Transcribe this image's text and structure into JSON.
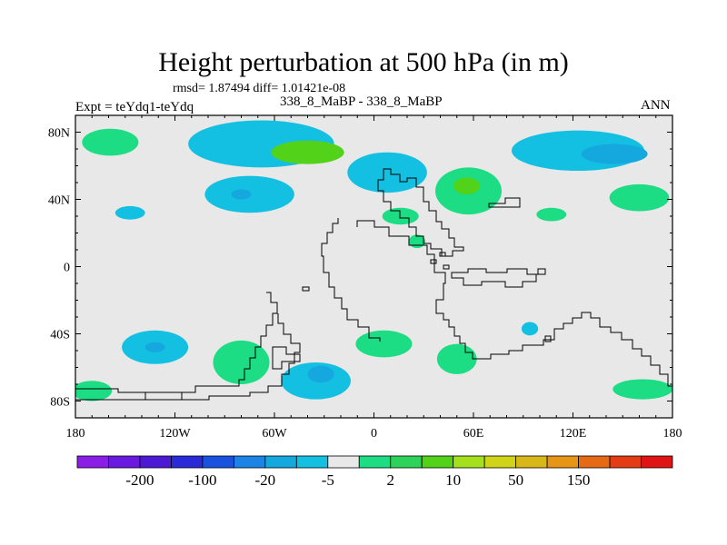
{
  "chart_data": {
    "type": "heatmap",
    "title": "Height perturbation at 500 hPa (in m)",
    "stats_text": "rmsd= 1.87494 diff= 1.01421e-08",
    "case_label": "338_8_MaBP - 338_8_MaBP",
    "experiment_label": "Expt = teYdq1-teYdq",
    "season": "ANN",
    "xlim": [
      -180,
      180
    ],
    "ylim": [
      -90,
      90
    ],
    "x_ticks": [
      {
        "value": -180,
        "label": "180"
      },
      {
        "value": -120,
        "label": "120W"
      },
      {
        "value": -60,
        "label": "60W"
      },
      {
        "value": 0,
        "label": "0"
      },
      {
        "value": 60,
        "label": "60E"
      },
      {
        "value": 120,
        "label": "120E"
      },
      {
        "value": 180,
        "label": "180"
      }
    ],
    "y_ticks": [
      {
        "value": 80,
        "label": "80N"
      },
      {
        "value": 40,
        "label": "40N"
      },
      {
        "value": 0,
        "label": "0"
      },
      {
        "value": -40,
        "label": "40S"
      },
      {
        "value": -80,
        "label": "80S"
      }
    ],
    "colorbar": {
      "colors": [
        "#8a1ee6",
        "#6a1ae0",
        "#4c1ad4",
        "#2a2ad8",
        "#1a52e0",
        "#1c84e6",
        "#14a8de",
        "#14c0e2",
        "#e8e8e8",
        "#1cdc84",
        "#2cd25a",
        "#52d218",
        "#a4e01c",
        "#d0d418",
        "#d8b818",
        "#e69614",
        "#e66a14",
        "#e43c14",
        "#e01414"
      ],
      "labels": [
        {
          "after_bin": 1,
          "text": "-200"
        },
        {
          "after_bin": 3,
          "text": "-100"
        },
        {
          "after_bin": 5,
          "text": "-20"
        },
        {
          "after_bin": 7,
          "text": "-5"
        },
        {
          "after_bin": 9,
          "text": "2"
        },
        {
          "after_bin": 11,
          "text": "10"
        },
        {
          "after_bin": 13,
          "text": "50"
        },
        {
          "after_bin": 15,
          "text": "150"
        }
      ]
    },
    "field_regions": [
      {
        "level": 2,
        "lon": -159,
        "lat": 74,
        "dlon": 17,
        "dlat": 8
      },
      {
        "level": -5,
        "lon": -68,
        "lat": 73,
        "dlon": 44,
        "dlat": 14
      },
      {
        "level": 10,
        "lon": -40,
        "lat": 68,
        "dlon": 22,
        "dlat": 7
      },
      {
        "level": -5,
        "lon": -75,
        "lat": 43,
        "dlon": 27,
        "dlat": 11
      },
      {
        "level": -20,
        "lon": -80,
        "lat": 43,
        "dlon": 6,
        "dlat": 3
      },
      {
        "level": -5,
        "lon": -147,
        "lat": 32,
        "dlon": 9,
        "dlat": 4
      },
      {
        "level": -5,
        "lon": 8,
        "lat": 56,
        "dlon": 24,
        "dlat": 12
      },
      {
        "level": 2,
        "lon": 16,
        "lat": 30,
        "dlon": 11,
        "dlat": 5
      },
      {
        "level": 2,
        "lon": 26,
        "lat": 15,
        "dlon": 5,
        "dlat": 4
      },
      {
        "level": 2,
        "lon": 57,
        "lat": 45,
        "dlon": 20,
        "dlat": 14
      },
      {
        "level": 10,
        "lon": 56,
        "lat": 48,
        "dlon": 8,
        "dlat": 5
      },
      {
        "level": 2,
        "lon": 107,
        "lat": 31,
        "dlon": 9,
        "dlat": 4
      },
      {
        "level": -5,
        "lon": 123,
        "lat": 69,
        "dlon": 40,
        "dlat": 12
      },
      {
        "level": -20,
        "lon": 145,
        "lat": 67,
        "dlon": 20,
        "dlat": 6
      },
      {
        "level": 2,
        "lon": 160,
        "lat": 41,
        "dlon": 18,
        "dlat": 8
      },
      {
        "level": -5,
        "lon": -132,
        "lat": -48,
        "dlon": 20,
        "dlat": 10
      },
      {
        "level": -20,
        "lon": -132,
        "lat": -48,
        "dlon": 6,
        "dlat": 3
      },
      {
        "level": 2,
        "lon": -80,
        "lat": -57,
        "dlon": 17,
        "dlat": 13
      },
      {
        "level": -5,
        "lon": -35,
        "lat": -68,
        "dlon": 21,
        "dlat": 11
      },
      {
        "level": -20,
        "lon": -32,
        "lat": -64,
        "dlon": 8,
        "dlat": 5
      },
      {
        "level": 2,
        "lon": 6,
        "lat": -46,
        "dlon": 17,
        "dlat": 8
      },
      {
        "level": 2,
        "lon": 50,
        "lat": -55,
        "dlon": 12,
        "dlat": 9
      },
      {
        "level": -5,
        "lon": 94,
        "lat": -37,
        "dlon": 5,
        "dlat": 4
      },
      {
        "level": 2,
        "lon": -170,
        "lat": -74,
        "dlon": 12,
        "dlat": 6
      },
      {
        "level": 2,
        "lon": 162,
        "lat": -73,
        "dlon": 18,
        "dlat": 6
      }
    ]
  }
}
